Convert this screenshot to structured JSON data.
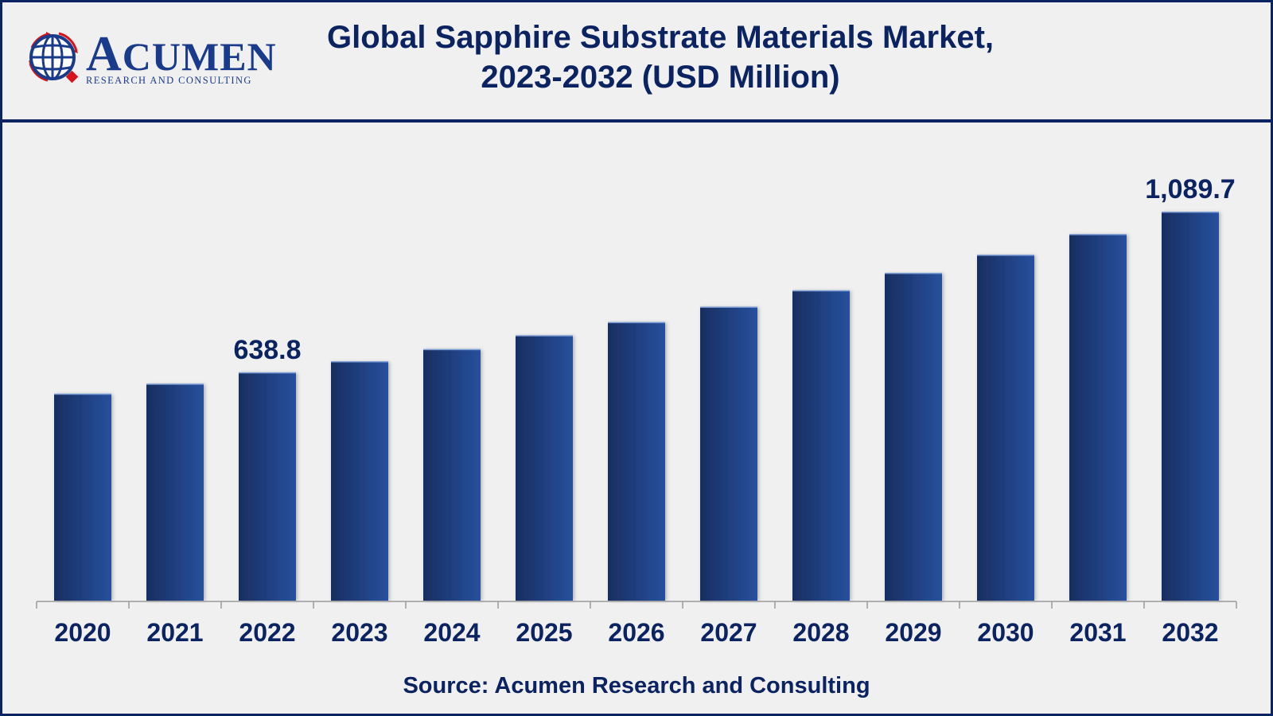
{
  "brand": {
    "name_initial": "A",
    "name_rest": "CUMEN",
    "tagline": "RESEARCH AND CONSULTING",
    "colors": {
      "primary": "#1a3a8c",
      "accent": "#d7141a"
    }
  },
  "header": {
    "title_line1": "Global Sapphire Substrate Materials Market,",
    "title_line2": "2023-2032 (USD Million)"
  },
  "footer": {
    "source": "Source: Acumen Research and Consulting"
  },
  "colors": {
    "frame": "#0b2361",
    "bar_dark": "#1a3266",
    "bar_light": "#27509e",
    "text": "#0b2361",
    "axis": "#9a9a9a"
  },
  "chart_data": {
    "type": "bar",
    "title": "Global Sapphire Substrate Materials Market, 2023-2032 (USD Million)",
    "xlabel": "",
    "ylabel": "USD Million",
    "categories": [
      "2020",
      "2021",
      "2022",
      "2023",
      "2024",
      "2025",
      "2026",
      "2027",
      "2028",
      "2029",
      "2030",
      "2031",
      "2032"
    ],
    "values": [
      579,
      607,
      638.8,
      670,
      704,
      743,
      780,
      823,
      869,
      918,
      969,
      1027,
      1089.7
    ],
    "data_labels": [
      {
        "index": 2,
        "text": "638.8"
      },
      {
        "index": 12,
        "text": "1,089.7"
      }
    ],
    "ylim": [
      0,
      1089.7
    ],
    "grid": false,
    "legend": "none",
    "source": "Source: Acumen Research and Consulting"
  }
}
